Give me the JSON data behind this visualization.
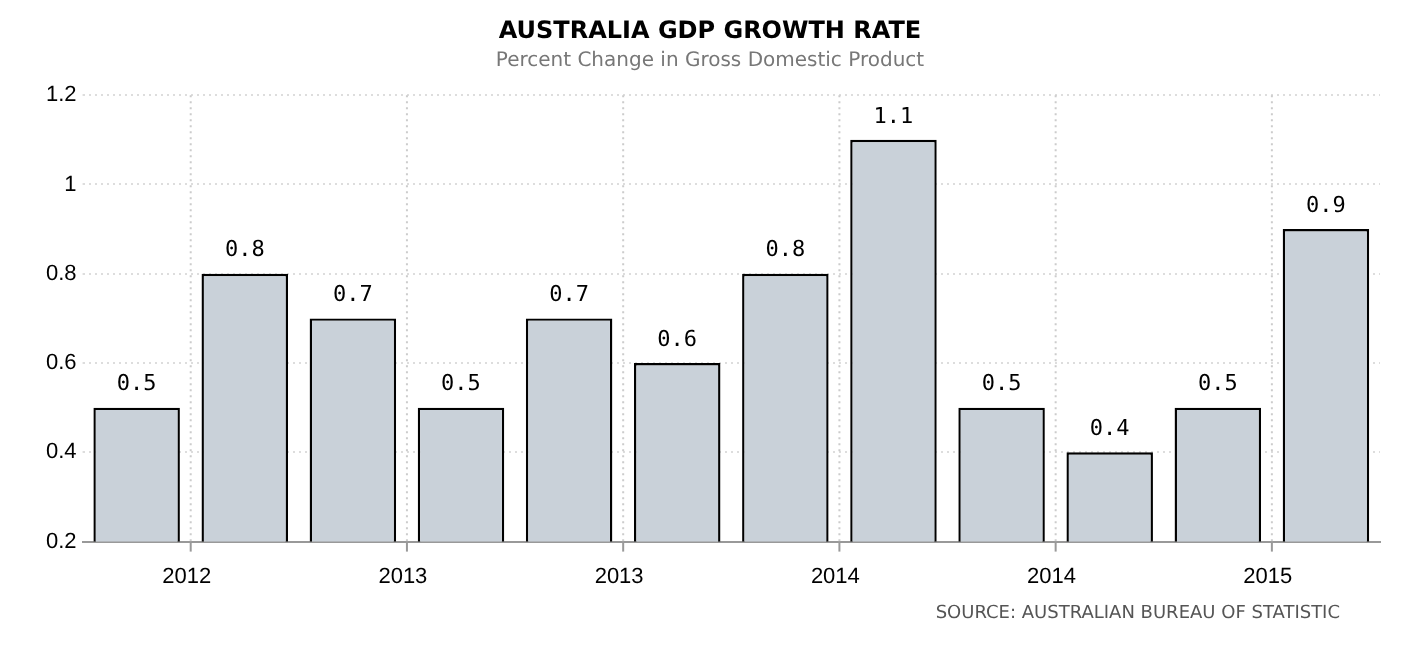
{
  "chart_data": {
    "type": "bar",
    "title": "AUSTRALIA GDP GROWTH RATE",
    "subtitle": "Percent Change in Gross Domestic Product",
    "categories": [
      "2012",
      null,
      "2013",
      null,
      "2013",
      null,
      "2014",
      null,
      "2014",
      null,
      "2015",
      null
    ],
    "values": [
      0.5,
      0.8,
      0.7,
      0.5,
      0.7,
      0.6,
      0.8,
      1.1,
      0.5,
      0.4,
      0.5,
      0.9
    ],
    "color": "#c9d1d9",
    "ylim": [
      0.2,
      1.2
    ],
    "yticks": [
      0.2,
      0.4,
      0.6,
      0.8,
      1,
      1.2
    ],
    "grid": true,
    "data_labels": true,
    "annotations": [
      "SOURCE: AUSTRALIAN BUREAU OF STATISTIC"
    ]
  }
}
